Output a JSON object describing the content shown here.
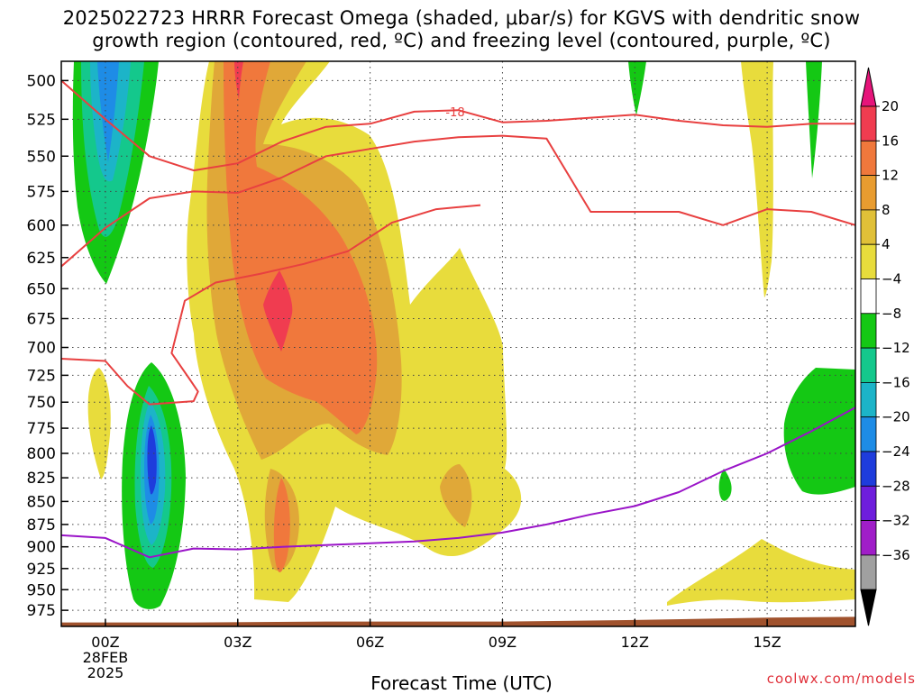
{
  "title_line1": "2025022723 HRRR Forecast Omega (shaded, μbar/s) for KGVS with dendritic snow",
  "title_line2": "growth region (contoured, red, ºC) and freezing level (contoured, purple, ºC)",
  "credit": "coolwx.com/models",
  "chart_data": {
    "type": "heatmap",
    "title": "2025022723 HRRR Forecast Omega (shaded, μbar/s) for KGVS with dendritic snow growth region (contoured, red, ºC) and freezing level (contoured, purple, ºC)",
    "xlabel": "Forecast Time (UTC)",
    "ylabel": "",
    "x_ticks": [
      {
        "hour": 0,
        "label": "00Z",
        "sub1": "28FEB",
        "sub2": "2025"
      },
      {
        "hour": 3,
        "label": "03Z"
      },
      {
        "hour": 6,
        "label": "06Z"
      },
      {
        "hour": 9,
        "label": "09Z"
      },
      {
        "hour": 12,
        "label": "12Z"
      },
      {
        "hour": 15,
        "label": "15Z"
      }
    ],
    "xlim": [
      -1,
      17
    ],
    "y_ticks": [
      500,
      525,
      550,
      575,
      600,
      625,
      650,
      675,
      700,
      725,
      750,
      775,
      800,
      825,
      850,
      875,
      900,
      925,
      950,
      975
    ],
    "ylim": [
      488,
      995
    ],
    "y_scale": "log-pressure",
    "grid": true,
    "colorbar": {
      "labels": [
        "20",
        "16",
        "12",
        "8",
        "4",
        "−4",
        "−8",
        "−12",
        "−16",
        "−20",
        "−24",
        "−28",
        "−32",
        "−36"
      ],
      "colors": [
        "#f03c50",
        "#f0783c",
        "#e89c30",
        "#e0c038",
        "#e8dc3c",
        "#ffffff",
        "#14c814",
        "#14c88c",
        "#1cb4c8",
        "#1e8ce6",
        "#1e3cdc",
        "#6e1edc",
        "#a01ec8",
        "#a0a0a0"
      ],
      "top_arrow_color": "#e6147a",
      "bottom_arrow_color": "#000000"
    },
    "dendritic_contour_label": "-18",
    "series": [
      {
        "name": "-18",
        "color": "#e84040",
        "points": [
          [
            -1,
            500
          ],
          [
            0,
            525
          ],
          [
            1,
            550
          ],
          [
            2,
            560
          ],
          [
            3,
            555
          ],
          [
            4,
            540
          ],
          [
            5,
            530
          ],
          [
            6,
            528
          ],
          [
            7,
            520
          ],
          [
            8,
            519
          ],
          [
            9,
            527
          ],
          [
            10,
            526
          ],
          [
            11,
            524
          ],
          [
            12,
            522
          ],
          [
            13,
            526
          ],
          [
            14,
            529
          ],
          [
            15,
            530
          ],
          [
            16,
            528
          ],
          [
            17,
            528
          ]
        ]
      },
      {
        "name": "",
        "color": "#e84040",
        "points": [
          [
            -1,
            632
          ],
          [
            0,
            602
          ],
          [
            1,
            580
          ],
          [
            2,
            575
          ],
          [
            3,
            576
          ],
          [
            4,
            565
          ],
          [
            5,
            550
          ],
          [
            6,
            545
          ],
          [
            7,
            540
          ],
          [
            8,
            537
          ],
          [
            9,
            536
          ],
          [
            10,
            538
          ],
          [
            11,
            590
          ],
          [
            12,
            590
          ],
          [
            13,
            590
          ],
          [
            14,
            600
          ],
          [
            15,
            588
          ],
          [
            16,
            590
          ],
          [
            17,
            600
          ]
        ]
      },
      {
        "name": "",
        "color": "#e84040",
        "points": [
          [
            -1,
            710
          ],
          [
            0,
            712
          ],
          [
            0.5,
            735
          ],
          [
            1,
            752
          ],
          [
            2,
            749
          ],
          [
            2.1,
            740
          ],
          [
            1.9,
            728
          ],
          [
            1.5,
            705
          ],
          [
            1.8,
            660
          ],
          [
            2.5,
            645
          ],
          [
            3.5,
            638
          ],
          [
            4.5,
            630
          ],
          [
            5.5,
            620
          ],
          [
            6.5,
            598
          ],
          [
            7.5,
            588
          ],
          [
            8.5,
            585
          ]
        ]
      },
      {
        "name": "",
        "color": "#9a14c8",
        "points": [
          [
            -1,
            887
          ],
          [
            0,
            890
          ],
          [
            1,
            912
          ],
          [
            2,
            902
          ],
          [
            3,
            903
          ],
          [
            4,
            900
          ],
          [
            5,
            898
          ],
          [
            6,
            896
          ],
          [
            7,
            894
          ],
          [
            8,
            890
          ],
          [
            9,
            884
          ],
          [
            10,
            875
          ],
          [
            11,
            864
          ],
          [
            12,
            855
          ],
          [
            13,
            840
          ],
          [
            14,
            818
          ],
          [
            15,
            800
          ],
          [
            16,
            778
          ],
          [
            17,
            755
          ]
        ]
      }
    ],
    "surface_pressure": [
      [
        -1,
        990
      ],
      [
        2,
        990
      ],
      [
        5,
        989
      ],
      [
        9,
        989
      ],
      [
        12,
        987
      ],
      [
        15,
        984
      ],
      [
        17,
        983
      ]
    ]
  }
}
